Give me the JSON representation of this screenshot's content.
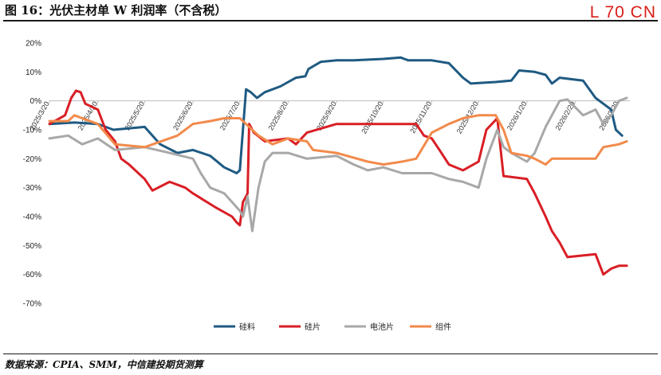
{
  "header": {
    "title": "图 16：光伏主材单 W 利润率（不含税）",
    "watermark": "L 70 CN"
  },
  "footer": {
    "source": "数据来源：CPIA、SMM，中信建投期货测算"
  },
  "chart_data": {
    "type": "line",
    "title": "",
    "xlabel": "",
    "ylabel": "",
    "ylim": [
      -70,
      20
    ],
    "yticks": [
      20,
      10,
      0,
      -10,
      -20,
      -30,
      -40,
      -50,
      -60,
      -70
    ],
    "ytick_labels": [
      "20%",
      "10%",
      "0%",
      "-10%",
      "-20%",
      "-30%",
      "-40%",
      "-50%",
      "-60%",
      "-70%"
    ],
    "x_dates": [
      "2025/3/20",
      "2025/4/20",
      "2025/5/20",
      "2025/6/20",
      "2025/7/20",
      "2025/8/20",
      "2025/9/20",
      "2025/10/20",
      "2025/11/20",
      "2025/12/20",
      "2026/1/20",
      "2026/2/20",
      "2026/3/20"
    ],
    "xlim": [
      "2025/3/20",
      "2026/3/27"
    ],
    "grid": false,
    "legend_position": "bottom",
    "series": [
      {
        "name": "硅料",
        "color": "#1f5a82",
        "points": [
          [
            "2025/3/20",
            -8
          ],
          [
            "2025/4/5",
            -7.5
          ],
          [
            "2025/4/20",
            -8
          ],
          [
            "2025/4/30",
            -10
          ],
          [
            "2025/5/20",
            -9
          ],
          [
            "2025/5/30",
            -15
          ],
          [
            "2025/6/10",
            -18
          ],
          [
            "2025/6/20",
            -17
          ],
          [
            "2025/7/1",
            -19
          ],
          [
            "2025/7/10",
            -23
          ],
          [
            "2025/7/18",
            -25
          ],
          [
            "2025/7/20",
            -24
          ],
          [
            "2025/7/24",
            4
          ],
          [
            "2025/7/27",
            3
          ],
          [
            "2025/7/31",
            1
          ],
          [
            "2025/8/5",
            3
          ],
          [
            "2025/8/15",
            5
          ],
          [
            "2025/8/25",
            8
          ],
          [
            "2025/8/31",
            8.5
          ],
          [
            "2025/9/2",
            11
          ],
          [
            "2025/9/10",
            13.5
          ],
          [
            "2025/9/20",
            14
          ],
          [
            "2025/10/1",
            14
          ],
          [
            "2025/10/20",
            14.5
          ],
          [
            "2025/10/31",
            15
          ],
          [
            "2025/11/5",
            14
          ],
          [
            "2025/11/20",
            14
          ],
          [
            "2025/12/1",
            13
          ],
          [
            "2025/12/10",
            8
          ],
          [
            "2025/12/15",
            6
          ],
          [
            "2025/12/31",
            6.5
          ],
          [
            "2026/1/10",
            7
          ],
          [
            "2026/1/15",
            10.5
          ],
          [
            "2026/1/25",
            10
          ],
          [
            "2026/2/1",
            9
          ],
          [
            "2026/2/5",
            6
          ],
          [
            "2026/2/10",
            8
          ],
          [
            "2026/2/25",
            7
          ],
          [
            "2026/3/5",
            1
          ],
          [
            "2026/3/10",
            -1
          ],
          [
            "2026/3/15",
            -3
          ],
          [
            "2026/3/18",
            -10
          ],
          [
            "2026/3/22",
            -12
          ]
        ]
      },
      {
        "name": "硅片",
        "color": "#d91e25",
        "points": [
          [
            "2025/3/20",
            -8
          ],
          [
            "2025/3/30",
            -5
          ],
          [
            "2025/4/3",
            1
          ],
          [
            "2025/4/6",
            3.5
          ],
          [
            "2025/4/9",
            3
          ],
          [
            "2025/4/12",
            -1
          ],
          [
            "2025/4/20",
            -3
          ],
          [
            "2025/4/25",
            -10
          ],
          [
            "2025/5/1",
            -14
          ],
          [
            "2025/5/5",
            -20
          ],
          [
            "2025/5/10",
            -22
          ],
          [
            "2025/5/20",
            -27
          ],
          [
            "2025/5/25",
            -31
          ],
          [
            "2025/6/5",
            -28
          ],
          [
            "2025/6/15",
            -30
          ],
          [
            "2025/6/20",
            -32
          ],
          [
            "2025/7/5",
            -37
          ],
          [
            "2025/7/15",
            -40
          ],
          [
            "2025/7/18",
            -42
          ],
          [
            "2025/7/20",
            -43
          ],
          [
            "2025/7/22",
            -35
          ],
          [
            "2025/7/25",
            -32
          ],
          [
            "2025/7/26",
            -8
          ],
          [
            "2025/7/29",
            -11
          ],
          [
            "2025/8/5",
            -14
          ],
          [
            "2025/8/20",
            -13
          ],
          [
            "2025/8/25",
            -15
          ],
          [
            "2025/9/1",
            -11
          ],
          [
            "2025/9/20",
            -8
          ],
          [
            "2025/10/20",
            -8
          ],
          [
            "2025/11/10",
            -8
          ],
          [
            "2025/11/15",
            -12
          ],
          [
            "2025/11/20",
            -13
          ],
          [
            "2025/11/25",
            -17
          ],
          [
            "2025/12/1",
            -22
          ],
          [
            "2025/12/10",
            -24
          ],
          [
            "2025/12/20",
            -21
          ],
          [
            "2025/12/25",
            -10
          ],
          [
            "2026/1/1",
            -6
          ],
          [
            "2026/1/5",
            -26
          ],
          [
            "2026/1/20",
            -27
          ],
          [
            "2026/1/25",
            -32
          ],
          [
            "2026/2/1",
            -40
          ],
          [
            "2026/2/5",
            -45
          ],
          [
            "2026/2/10",
            -49
          ],
          [
            "2026/2/15",
            -54
          ],
          [
            "2026/3/5",
            -53
          ],
          [
            "2026/3/10",
            -60
          ],
          [
            "2026/3/15",
            -58
          ],
          [
            "2026/3/20",
            -57
          ],
          [
            "2026/3/25",
            -57
          ]
        ]
      },
      {
        "name": "电池片",
        "color": "#a8a8a8",
        "points": [
          [
            "2025/3/20",
            -13
          ],
          [
            "2025/4/1",
            -12
          ],
          [
            "2025/4/10",
            -15
          ],
          [
            "2025/4/20",
            -13
          ],
          [
            "2025/5/1",
            -17
          ],
          [
            "2025/5/20",
            -16
          ],
          [
            "2025/6/5",
            -18
          ],
          [
            "2025/6/20",
            -20
          ],
          [
            "2025/6/25",
            -25
          ],
          [
            "2025/7/1",
            -30
          ],
          [
            "2025/7/10",
            -32
          ],
          [
            "2025/7/20",
            -38
          ],
          [
            "2025/7/22",
            -40
          ],
          [
            "2025/7/25",
            -33
          ],
          [
            "2025/7/28",
            -45
          ],
          [
            "2025/8/1",
            -30
          ],
          [
            "2025/8/5",
            -21
          ],
          [
            "2025/8/10",
            -18
          ],
          [
            "2025/8/20",
            -18
          ],
          [
            "2025/9/1",
            -20
          ],
          [
            "2025/9/20",
            -19
          ],
          [
            "2025/10/1",
            -22
          ],
          [
            "2025/10/10",
            -24
          ],
          [
            "2025/10/20",
            -23
          ],
          [
            "2025/11/1",
            -25
          ],
          [
            "2025/11/20",
            -25
          ],
          [
            "2025/12/1",
            -27
          ],
          [
            "2025/12/10",
            -28
          ],
          [
            "2025/12/20",
            -30
          ],
          [
            "2025/12/25",
            -20
          ],
          [
            "2026/1/1",
            -10
          ],
          [
            "2026/1/5",
            -16
          ],
          [
            "2026/1/10",
            -18
          ],
          [
            "2026/1/20",
            -21
          ],
          [
            "2026/1/25",
            -18
          ],
          [
            "2026/2/1",
            -9
          ],
          [
            "2026/2/5",
            -5
          ],
          [
            "2026/2/10",
            0
          ],
          [
            "2026/2/15",
            0.5
          ],
          [
            "2026/2/25",
            -5
          ],
          [
            "2026/3/5",
            -3
          ],
          [
            "2026/3/10",
            -8
          ],
          [
            "2026/3/15",
            -5
          ],
          [
            "2026/3/20",
            0
          ],
          [
            "2026/3/25",
            1
          ]
        ]
      },
      {
        "name": "组件",
        "color": "#f28a4b",
        "points": [
          [
            "2025/3/20",
            -7
          ],
          [
            "2025/4/1",
            -7
          ],
          [
            "2025/4/5",
            -5
          ],
          [
            "2025/4/10",
            -6
          ],
          [
            "2025/4/20",
            -8
          ],
          [
            "2025/5/1",
            -15
          ],
          [
            "2025/5/20",
            -16
          ],
          [
            "2025/6/10",
            -12
          ],
          [
            "2025/6/20",
            -8
          ],
          [
            "2025/7/1",
            -7
          ],
          [
            "2025/7/10",
            -6
          ],
          [
            "2025/7/20",
            -6
          ],
          [
            "2025/8/1",
            -12
          ],
          [
            "2025/8/10",
            -15
          ],
          [
            "2025/8/20",
            -13
          ],
          [
            "2025/9/1",
            -14
          ],
          [
            "2025/9/5",
            -17
          ],
          [
            "2025/9/20",
            -18
          ],
          [
            "2025/10/10",
            -21
          ],
          [
            "2025/10/20",
            -22
          ],
          [
            "2025/11/1",
            -21
          ],
          [
            "2025/11/10",
            -20
          ],
          [
            "2025/11/20",
            -11
          ],
          [
            "2025/12/1",
            -8
          ],
          [
            "2025/12/10",
            -6
          ],
          [
            "2025/12/20",
            -5
          ],
          [
            "2025/12/31",
            -5
          ],
          [
            "2026/1/5",
            -10
          ],
          [
            "2026/1/10",
            -18
          ],
          [
            "2026/1/20",
            -19
          ],
          [
            "2026/1/25",
            -20
          ],
          [
            "2026/2/1",
            -22
          ],
          [
            "2026/2/5",
            -20
          ],
          [
            "2026/2/20",
            -20
          ],
          [
            "2026/3/5",
            -20
          ],
          [
            "2026/3/10",
            -16
          ],
          [
            "2026/3/20",
            -15
          ],
          [
            "2026/3/25",
            -14
          ]
        ]
      }
    ]
  }
}
